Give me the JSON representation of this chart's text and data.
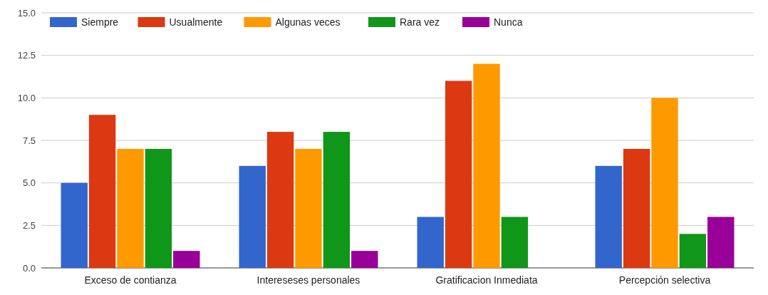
{
  "chart_data": {
    "type": "bar",
    "categories": [
      "Exceso de contianza",
      "Intereseses personales",
      "Gratificacion Inmediata",
      "Percepción selectiva"
    ],
    "series": [
      {
        "name": "Siempre",
        "color": "#3366cc",
        "values": [
          5,
          6,
          3,
          6
        ]
      },
      {
        "name": "Usualmente",
        "color": "#dc3912",
        "values": [
          9,
          8,
          11,
          7
        ]
      },
      {
        "name": "Algunas veces",
        "color": "#ff9900",
        "values": [
          7,
          7,
          12,
          10
        ]
      },
      {
        "name": "Rara vez",
        "color": "#109618",
        "values": [
          7,
          8,
          3,
          2
        ]
      },
      {
        "name": "Nunca",
        "color": "#990099",
        "values": [
          1,
          1,
          0,
          3
        ]
      }
    ],
    "ylim": [
      0,
      15
    ],
    "yticks": [
      {
        "value": 0,
        "label": "0.0"
      },
      {
        "value": 2.5,
        "label": "2.5"
      },
      {
        "value": 5,
        "label": "5.0"
      },
      {
        "value": 7.5,
        "label": "7.5"
      },
      {
        "value": 10,
        "label": "10.0"
      },
      {
        "value": 12.5,
        "label": "12.5"
      },
      {
        "value": 15,
        "label": "15.0"
      }
    ],
    "grid": "y",
    "legend": "top left"
  }
}
